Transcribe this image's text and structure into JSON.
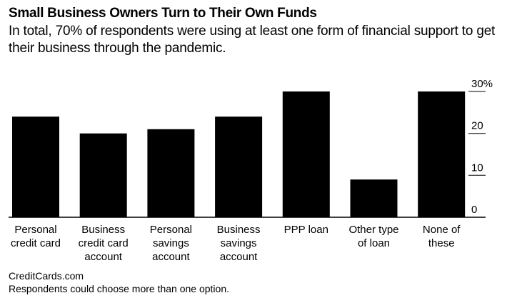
{
  "header": {
    "title": "Small Business Owners Turn to Their Own Funds",
    "subtitle": "In total, 70% of respondents were using at least one form of financial support to get their business through the pandemic."
  },
  "chart_data": {
    "type": "bar",
    "categories": [
      [
        "Personal",
        "credit card"
      ],
      [
        "Business",
        "credit card",
        "account"
      ],
      [
        "Personal",
        "savings",
        "account"
      ],
      [
        "Business",
        "savings",
        "account"
      ],
      [
        "PPP loan"
      ],
      [
        "Other type",
        "of loan"
      ],
      [
        "None of",
        "these"
      ]
    ],
    "values": [
      24,
      20,
      21,
      24,
      30,
      9,
      30
    ],
    "yticks": [
      "0",
      "10",
      "20",
      "30%"
    ],
    "ylim": [
      0,
      30
    ],
    "axis_position": "right",
    "bar_color": "#000000",
    "grid": false
  },
  "footer": {
    "source": "CreditCards.com",
    "note": "Respondents could choose more than one option."
  }
}
